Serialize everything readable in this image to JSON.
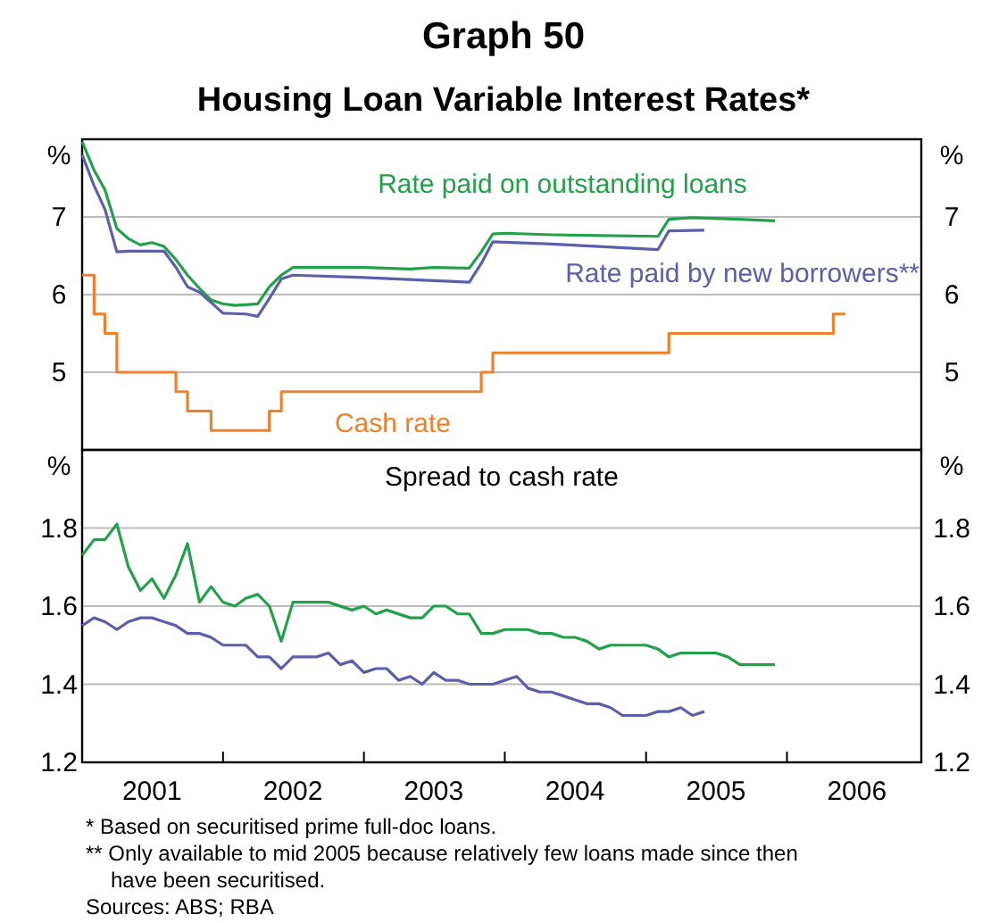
{
  "chart_data": [
    {
      "type": "line",
      "title": "Graph 50",
      "subtitle": "Housing Loan Variable Interest Rates*",
      "ylabel": "%",
      "y2label": "%",
      "xlim": [
        "2001-01",
        "2006-12-15"
      ],
      "ylim": [
        4,
        8
      ],
      "yticks": [
        5,
        6,
        7
      ],
      "y2lim": [
        4,
        8
      ],
      "y2ticks": [
        5,
        6,
        7
      ],
      "grid": "y",
      "tick_labels": "y",
      "series": [
        {
          "name": "Rate paid on outstanding loans",
          "color": "#23a04a",
          "x": [
            "2001-01",
            "2001-02",
            "2001-03",
            "2001-04",
            "2001-05",
            "2001-06",
            "2001-07",
            "2001-08",
            "2001-09",
            "2001-10",
            "2001-11",
            "2001-12",
            "2002-01",
            "2002-02",
            "2002-03",
            "2002-04",
            "2002-05",
            "2002-06",
            "2002-07",
            "2002-09",
            "2003-01",
            "2003-05",
            "2003-07",
            "2003-10",
            "2003-11",
            "2003-12",
            "2004-01",
            "2004-05",
            "2004-09",
            "2005-02",
            "2005-03",
            "2005-05",
            "2005-09",
            "2005-12"
          ],
          "values": [
            7.97,
            7.6,
            7.35,
            6.85,
            6.72,
            6.64,
            6.67,
            6.62,
            6.45,
            6.25,
            6.08,
            5.93,
            5.88,
            5.86,
            5.87,
            5.88,
            6.1,
            6.25,
            6.35,
            6.35,
            6.35,
            6.33,
            6.35,
            6.34,
            6.55,
            6.78,
            6.79,
            6.77,
            6.76,
            6.75,
            6.97,
            6.99,
            6.97,
            6.95
          ]
        },
        {
          "name": "Rate paid by new borrowers**",
          "color": "#5c60aa",
          "x": [
            "2001-01",
            "2001-02",
            "2001-03",
            "2001-04",
            "2001-05",
            "2001-08",
            "2001-09",
            "2001-10",
            "2001-11",
            "2001-12",
            "2002-01",
            "2002-03",
            "2002-04",
            "2002-05",
            "2002-06",
            "2002-07",
            "2003-01",
            "2003-07",
            "2003-10",
            "2003-11",
            "2003-12",
            "2004-05",
            "2005-02",
            "2005-03",
            "2005-06"
          ],
          "values": [
            7.8,
            7.4,
            7.1,
            6.55,
            6.56,
            6.56,
            6.35,
            6.1,
            6.03,
            5.9,
            5.76,
            5.75,
            5.72,
            5.95,
            6.2,
            6.25,
            6.22,
            6.18,
            6.16,
            6.4,
            6.68,
            6.65,
            6.58,
            6.82,
            6.83
          ]
        },
        {
          "name": "Cash rate",
          "type": "step",
          "color": "#f0802c",
          "x": [
            "2001-01",
            "2001-02",
            "2001-03",
            "2001-04",
            "2001-09",
            "2001-10",
            "2001-12",
            "2002-05",
            "2002-06",
            "2003-11",
            "2003-12",
            "2005-03",
            "2006-05",
            "2006-06"
          ],
          "values": [
            6.25,
            5.75,
            5.5,
            5.0,
            4.75,
            4.5,
            4.25,
            4.5,
            4.75,
            5.0,
            5.25,
            5.5,
            5.75,
            5.75
          ]
        }
      ]
    },
    {
      "type": "line",
      "title": "Spread to cash rate",
      "ylabel": "%",
      "y2label": "%",
      "xlim": [
        "2001-01",
        "2006-12-15"
      ],
      "ylim": [
        1.2,
        2.0
      ],
      "yticks": [
        1.2,
        1.4,
        1.6,
        1.8
      ],
      "y2lim": [
        1.2,
        2.0
      ],
      "y2ticks": [
        1.2,
        1.4,
        1.6,
        1.8
      ],
      "grid": "y",
      "xticks": [
        {
          "value": "2001-07",
          "label": "2001"
        },
        {
          "value": "2002-01",
          "label": null
        },
        {
          "value": "2002-07",
          "label": "2002"
        },
        {
          "value": "2003-01",
          "label": null
        },
        {
          "value": "2003-07",
          "label": "2003"
        },
        {
          "value": "2004-01",
          "label": null
        },
        {
          "value": "2004-07",
          "label": "2004"
        },
        {
          "value": "2005-01",
          "label": null
        },
        {
          "value": "2005-07",
          "label": "2005"
        },
        {
          "value": "2006-01",
          "label": null
        },
        {
          "value": "2006-07",
          "label": "2006"
        }
      ],
      "series": [
        {
          "color": "#23a04a",
          "x": [
            "2001-01",
            "2001-02",
            "2001-03",
            "2001-04",
            "2001-05",
            "2001-06",
            "2001-07",
            "2001-08",
            "2001-09",
            "2001-10",
            "2001-11",
            "2001-12",
            "2002-01",
            "2002-02",
            "2002-03",
            "2002-04",
            "2002-05",
            "2002-06",
            "2002-07",
            "2002-10",
            "2002-12",
            "2003-01",
            "2003-02",
            "2003-03",
            "2003-05",
            "2003-06",
            "2003-07",
            "2003-08",
            "2003-09",
            "2003-10",
            "2003-11",
            "2003-12",
            "2004-01",
            "2004-03",
            "2004-04",
            "2004-05",
            "2004-06",
            "2004-07",
            "2004-08",
            "2004-09",
            "2004-10",
            "2005-01",
            "2005-02",
            "2005-03",
            "2005-04",
            "2005-07",
            "2005-08",
            "2005-09",
            "2005-12"
          ],
          "values": [
            1.73,
            1.77,
            1.77,
            1.81,
            1.7,
            1.64,
            1.67,
            1.62,
            1.68,
            1.76,
            1.61,
            1.65,
            1.61,
            1.6,
            1.62,
            1.63,
            1.6,
            1.51,
            1.61,
            1.61,
            1.59,
            1.6,
            1.58,
            1.59,
            1.57,
            1.57,
            1.6,
            1.6,
            1.58,
            1.58,
            1.53,
            1.53,
            1.54,
            1.54,
            1.53,
            1.53,
            1.52,
            1.52,
            1.51,
            1.49,
            1.5,
            1.5,
            1.49,
            1.47,
            1.48,
            1.48,
            1.47,
            1.45,
            1.45
          ]
        },
        {
          "color": "#5c60aa",
          "x": [
            "2001-01",
            "2001-02",
            "2001-03",
            "2001-04",
            "2001-05",
            "2001-06",
            "2001-07",
            "2001-08",
            "2001-09",
            "2001-10",
            "2001-11",
            "2001-12",
            "2002-01",
            "2002-03",
            "2002-04",
            "2002-05",
            "2002-06",
            "2002-07",
            "2002-09",
            "2002-10",
            "2002-11",
            "2002-12",
            "2003-01",
            "2003-02",
            "2003-03",
            "2003-04",
            "2003-05",
            "2003-06",
            "2003-07",
            "2003-08",
            "2003-09",
            "2003-10",
            "2003-12",
            "2004-01",
            "2004-02",
            "2004-03",
            "2004-04",
            "2004-05",
            "2004-06",
            "2004-07",
            "2004-08",
            "2004-09",
            "2004-10",
            "2004-11",
            "2005-01",
            "2005-02",
            "2005-03",
            "2005-04",
            "2005-05",
            "2005-06"
          ],
          "values": [
            1.55,
            1.57,
            1.56,
            1.54,
            1.56,
            1.57,
            1.57,
            1.56,
            1.55,
            1.53,
            1.53,
            1.52,
            1.5,
            1.5,
            1.47,
            1.47,
            1.44,
            1.47,
            1.47,
            1.48,
            1.45,
            1.46,
            1.43,
            1.44,
            1.44,
            1.41,
            1.42,
            1.4,
            1.43,
            1.41,
            1.41,
            1.4,
            1.4,
            1.41,
            1.42,
            1.39,
            1.38,
            1.38,
            1.37,
            1.36,
            1.35,
            1.35,
            1.34,
            1.32,
            1.32,
            1.33,
            1.33,
            1.34,
            1.32,
            1.33
          ]
        }
      ],
      "annotations": [
        "*   Based on securitised prime full-doc loans.",
        "** Only available to mid 2005 because relatively few loans made since then have been securitised.",
        "Sources: ABS; RBA"
      ]
    }
  ]
}
